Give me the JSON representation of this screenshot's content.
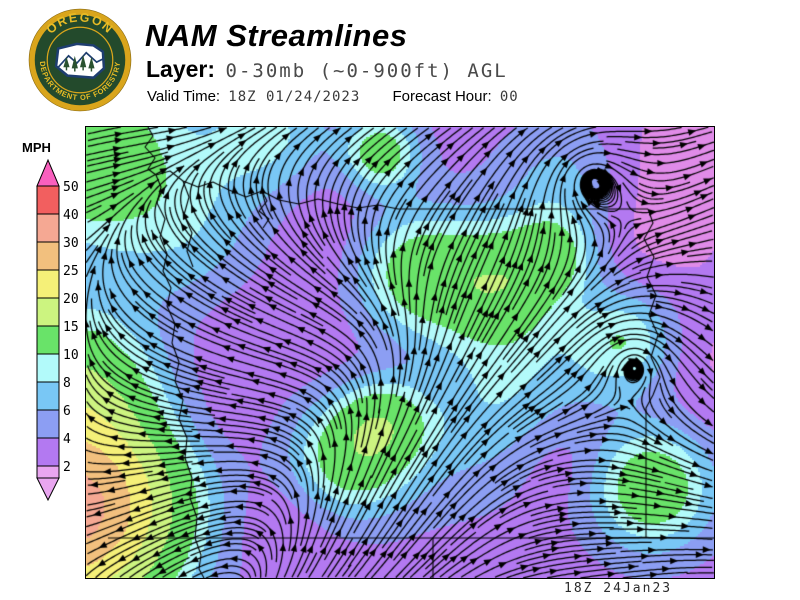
{
  "header": {
    "title": "NAM Streamlines",
    "layer_label": "Layer:",
    "layer_value": "0-30mb (~0-900ft) AGL",
    "valid_time_label": "Valid Time:",
    "valid_time_value": "18Z 01/24/2023",
    "forecast_hour_label": "Forecast Hour:",
    "forecast_hour_value": "00"
  },
  "logo": {
    "org_top": "OREGON",
    "org_bottom": "DEPARTMENT OF FORESTRY",
    "ring_color": "#D9A51C",
    "bg_color": "#234A2C",
    "text_color": "#E9BC25",
    "shape_outline_color": "#1E3E70",
    "tree_color": "#2A5230",
    "shape_fill": "#FFFFFF"
  },
  "legend": {
    "units_label": "MPH",
    "ticks": [
      "50",
      "40",
      "30",
      "25",
      "20",
      "15",
      "10",
      "8",
      "6",
      "4",
      "2"
    ],
    "segment_colors": [
      "#F25F5F",
      "#F5A893",
      "#F2C07E",
      "#F5F078",
      "#CCF480",
      "#69E369",
      "#B2FAFA",
      "#79C7F5",
      "#8C9EF3",
      "#B379F1"
    ],
    "top_arrow_color": "#F960BE",
    "bottom_arrow_color": "#E9A6F0"
  },
  "map": {
    "timestamp": "18Z 24Jan23",
    "stream_color": "#000000",
    "palette": [
      {
        "max": 2,
        "color": "#E08BE8"
      },
      {
        "max": 4,
        "color": "#B379F1"
      },
      {
        "max": 6,
        "color": "#8C9EF3"
      },
      {
        "max": 8,
        "color": "#79C7F5"
      },
      {
        "max": 10,
        "color": "#B2FAFA"
      },
      {
        "max": 15,
        "color": "#69E369"
      },
      {
        "max": 20,
        "color": "#CCF480"
      },
      {
        "max": 25,
        "color": "#F5F078"
      },
      {
        "max": 30,
        "color": "#F2C07E"
      },
      {
        "max": 40,
        "color": "#F5A893"
      },
      {
        "max": 50,
        "color": "#F25F5F"
      },
      {
        "max": 999,
        "color": "#F960BE"
      }
    ]
  }
}
